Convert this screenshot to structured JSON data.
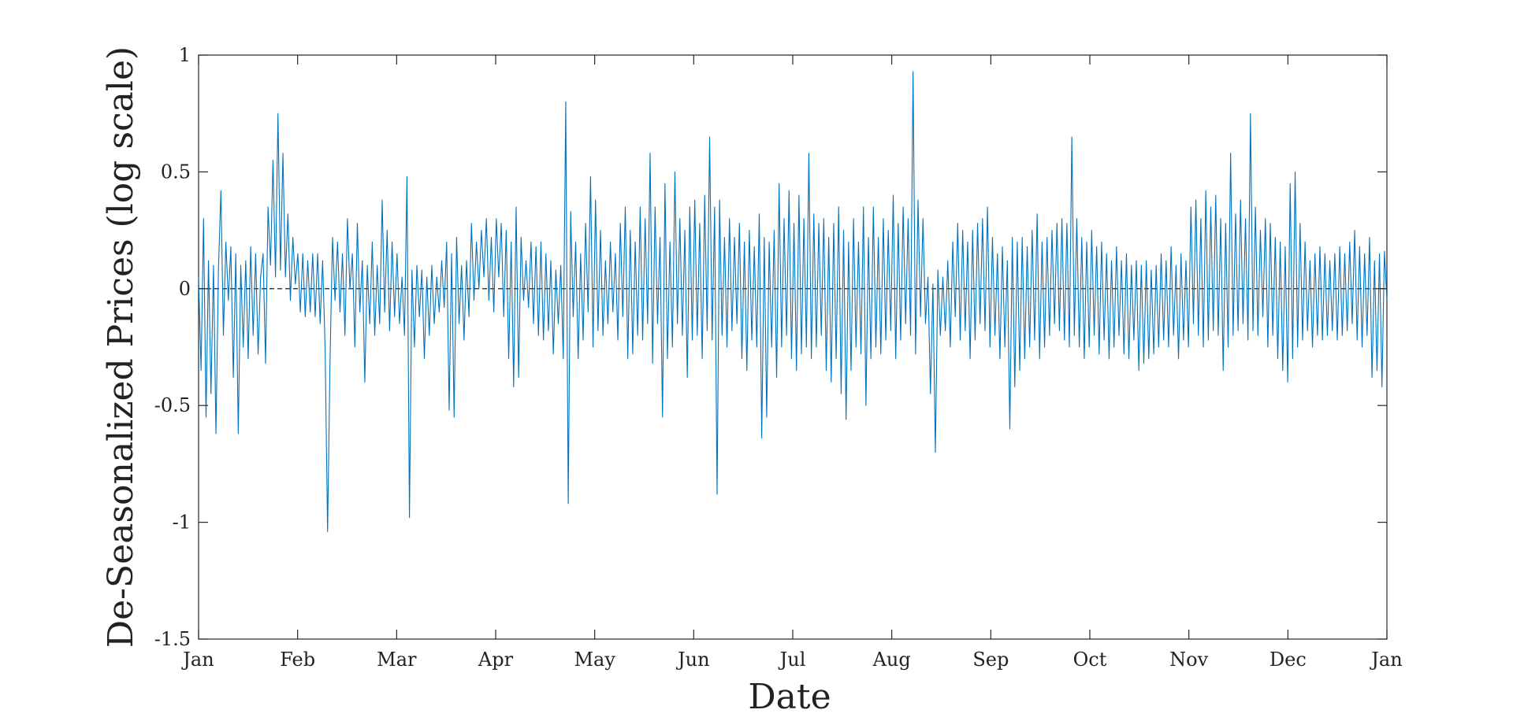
{
  "chart_data": {
    "type": "line",
    "title": "",
    "xlabel": "Date",
    "ylabel": "De-Seasonalized Prices (log scale)",
    "x_ticks": [
      "Jan",
      "Feb",
      "Mar",
      "Apr",
      "May",
      "Jun",
      "Jul",
      "Aug",
      "Sep",
      "Oct",
      "Nov",
      "Dec",
      "Jan"
    ],
    "y_ticks": [
      "1",
      "0.5",
      "0",
      "-0.5",
      "-1",
      "-1.5"
    ],
    "ylim": [
      -1.5,
      1
    ],
    "xlim": [
      "Jan",
      "Jan"
    ],
    "grid": false,
    "reference_line": {
      "y": 0,
      "style": "dashed",
      "color": "#000000"
    },
    "series": [
      {
        "color": "#0072BD",
        "values": [
          0.05,
          -0.35,
          0.3,
          -0.55,
          0.12,
          -0.45,
          0.1,
          -0.62,
          0.08,
          0.42,
          -0.2,
          0.2,
          -0.05,
          0.18,
          -0.38,
          0.15,
          -0.62,
          0.1,
          -0.25,
          0.12,
          -0.3,
          0.18,
          -0.2,
          0.15,
          -0.28,
          0.05,
          0.15,
          -0.32,
          0.35,
          0.1,
          0.55,
          0.05,
          0.75,
          0.08,
          0.58,
          0.05,
          0.32,
          -0.05,
          0.22,
          0.02,
          0.15,
          -0.1,
          0.15,
          -0.12,
          0.12,
          -0.1,
          0.15,
          -0.12,
          0.15,
          -0.15,
          0.12,
          -0.25,
          -1.04,
          -0.3,
          0.22,
          -0.05,
          0.2,
          -0.1,
          0.15,
          -0.2,
          0.3,
          0.0,
          0.15,
          -0.25,
          0.28,
          -0.1,
          0.12,
          -0.4,
          0.1,
          -0.15,
          0.2,
          -0.2,
          0.1,
          -0.15,
          0.38,
          -0.1,
          0.25,
          -0.18,
          0.2,
          -0.12,
          0.15,
          -0.15,
          0.05,
          -0.2,
          0.48,
          -0.98,
          0.08,
          -0.25,
          0.1,
          -0.12,
          0.08,
          -0.3,
          0.05,
          -0.2,
          0.1,
          -0.15,
          0.05,
          -0.1,
          0.12,
          -0.08,
          0.2,
          -0.52,
          0.15,
          -0.55,
          0.22,
          -0.15,
          0.1,
          -0.22,
          0.12,
          -0.12,
          0.28,
          -0.05,
          0.2,
          0.0,
          0.25,
          0.05,
          0.3,
          -0.05,
          0.22,
          -0.1,
          0.3,
          0.05,
          0.28,
          -0.12,
          0.25,
          -0.3,
          0.2,
          -0.42,
          0.35,
          -0.38,
          0.22,
          -0.05,
          0.12,
          -0.08,
          0.2,
          -0.15,
          0.18,
          -0.2,
          0.2,
          -0.22,
          0.15,
          -0.18,
          0.12,
          -0.28,
          0.08,
          -0.15,
          0.1,
          -0.3,
          0.8,
          -0.92,
          0.33,
          -0.12,
          0.2,
          -0.3,
          0.15,
          -0.22,
          0.28,
          -0.1,
          0.48,
          -0.25,
          0.38,
          -0.18,
          0.25,
          -0.2,
          0.12,
          -0.15,
          0.2,
          -0.1,
          0.15,
          -0.22,
          0.28,
          -0.12,
          0.35,
          -0.3,
          0.25,
          -0.28,
          0.2,
          -0.2,
          0.35,
          -0.22,
          0.3,
          -0.15,
          0.58,
          -0.32,
          0.35,
          -0.15,
          0.22,
          -0.55,
          0.45,
          -0.3,
          0.2,
          -0.25,
          0.5,
          -0.15,
          0.3,
          -0.2,
          0.25,
          -0.38,
          0.35,
          -0.22,
          0.38,
          -0.2,
          0.28,
          -0.3,
          0.4,
          -0.18,
          0.65,
          -0.22,
          0.35,
          -0.88,
          0.38,
          -0.2,
          0.22,
          -0.25,
          0.3,
          -0.18,
          0.22,
          -0.15,
          0.28,
          -0.3,
          0.2,
          -0.35,
          0.25,
          -0.22,
          0.18,
          -0.25,
          0.32,
          -0.64,
          0.22,
          -0.55,
          0.2,
          -0.25,
          0.25,
          -0.38,
          0.45,
          -0.25,
          0.3,
          -0.2,
          0.42,
          -0.3,
          0.28,
          -0.35,
          0.4,
          -0.28,
          0.3,
          -0.25,
          0.58,
          -0.3,
          0.32,
          -0.25,
          0.28,
          -0.2,
          0.3,
          -0.35,
          0.22,
          -0.4,
          0.28,
          -0.3,
          0.35,
          -0.45,
          0.25,
          -0.56,
          0.2,
          -0.35,
          0.3,
          -0.25,
          0.2,
          -0.28,
          0.35,
          -0.5,
          0.22,
          -0.3,
          0.35,
          -0.25,
          0.22,
          -0.28,
          0.3,
          -0.22,
          0.25,
          -0.18,
          0.4,
          -0.3,
          0.28,
          -0.22,
          0.35,
          -0.15,
          0.3,
          -0.2,
          0.93,
          -0.28,
          0.38,
          -0.12,
          0.3,
          -0.15,
          0.05,
          -0.45,
          0.02,
          -0.7,
          0.08,
          -0.2,
          0.05,
          -0.18,
          0.12,
          -0.25,
          0.2,
          -0.12,
          0.28,
          -0.22,
          0.25,
          -0.18,
          0.2,
          -0.3,
          0.25,
          -0.22,
          0.28,
          -0.15,
          0.3,
          -0.18,
          0.35,
          -0.25,
          0.22,
          -0.2,
          0.15,
          -0.3,
          0.18,
          -0.25,
          0.12,
          -0.6,
          0.22,
          -0.42,
          0.2,
          -0.35,
          0.22,
          -0.3,
          0.18,
          -0.25,
          0.25,
          -0.22,
          0.32,
          -0.3,
          0.2,
          -0.25,
          0.22,
          -0.2,
          0.25,
          -0.15,
          0.28,
          -0.18,
          0.3,
          -0.22,
          0.28,
          -0.25,
          0.65,
          -0.2,
          0.3,
          -0.25,
          0.22,
          -0.3,
          0.2,
          -0.25,
          0.25,
          -0.2,
          0.18,
          -0.28,
          0.2,
          -0.22,
          0.15,
          -0.3,
          0.12,
          -0.25,
          0.18,
          -0.2,
          0.12,
          -0.28,
          0.15,
          -0.3,
          0.1,
          -0.22,
          0.12,
          -0.35,
          0.1,
          -0.32,
          0.12,
          -0.3,
          0.08,
          -0.28,
          0.1,
          -0.25,
          0.15,
          -0.22,
          0.12,
          -0.25,
          0.18,
          -0.2,
          0.1,
          -0.3,
          0.15,
          -0.22,
          0.12,
          -0.25,
          0.35,
          -0.15,
          0.38,
          -0.2,
          0.3,
          -0.25,
          0.42,
          -0.22,
          0.35,
          -0.18,
          0.4,
          -0.2,
          0.3,
          -0.35,
          0.28,
          -0.25,
          0.58,
          -0.2,
          0.32,
          -0.18,
          0.38,
          -0.15,
          0.3,
          -0.22,
          0.75,
          -0.18,
          0.35,
          -0.2,
          0.25,
          -0.12,
          0.3,
          -0.25,
          0.28,
          -0.2,
          0.22,
          -0.3,
          0.2,
          -0.35,
          0.18,
          -0.4,
          0.45,
          -0.3,
          0.5,
          -0.25,
          0.28,
          -0.22,
          0.2,
          -0.18,
          0.12,
          -0.25,
          0.15,
          -0.2,
          0.18,
          -0.22,
          0.15,
          -0.2,
          0.12,
          -0.18,
          0.15,
          -0.22,
          0.18,
          -0.2,
          0.15,
          -0.18,
          0.2,
          -0.15,
          0.25,
          -0.22,
          0.18,
          -0.25,
          0.15,
          -0.2,
          0.22,
          -0.38,
          0.12,
          -0.35,
          0.15,
          -0.42,
          0.16,
          -0.05
        ]
      }
    ]
  }
}
